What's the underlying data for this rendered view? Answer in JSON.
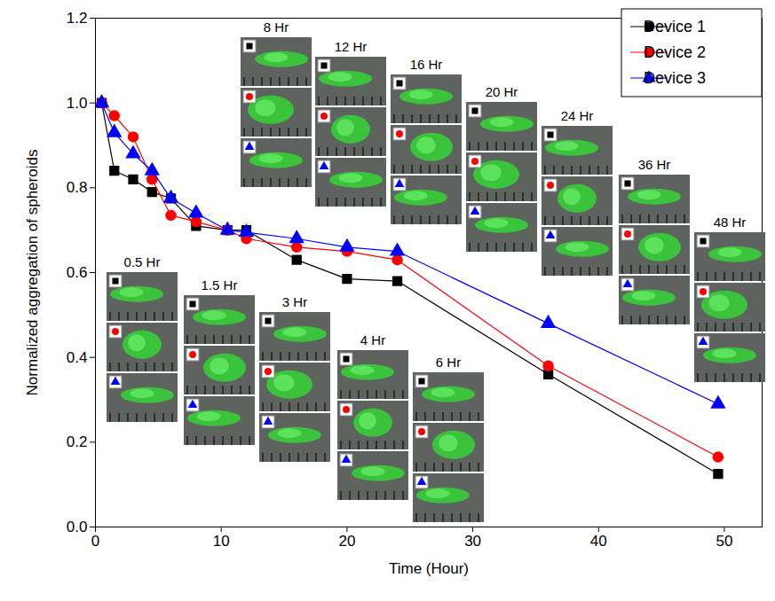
{
  "chart_data": {
    "type": "line",
    "x_label": "Time (Hour)",
    "y_label": "Normalized aggregation of spheroids",
    "xlim": [
      0,
      53
    ],
    "xticks": [
      0,
      10,
      20,
      30,
      40,
      50
    ],
    "ylim": [
      0,
      1.2
    ],
    "yticks": [
      {
        "value": 0,
        "label": "0.0"
      },
      0.2,
      0.4,
      0.6,
      0.8,
      {
        "value": 1,
        "label": "1.0"
      },
      1.2
    ],
    "legend": "top-right",
    "x": [
      0.5,
      1.5,
      3,
      4.5,
      6,
      8,
      10.5,
      12,
      16,
      20,
      24,
      36,
      49.5
    ],
    "series": [
      {
        "name": "Device 1",
        "color": "#000000",
        "marker": "square",
        "values": [
          1.0,
          0.84,
          0.82,
          0.79,
          0.775,
          0.71,
          0.7,
          0.7,
          0.63,
          0.585,
          0.58,
          0.36,
          0.125
        ]
      },
      {
        "name": "Device 2",
        "color": "#ff0000",
        "marker": "circle",
        "values": [
          1.0,
          0.97,
          0.92,
          0.82,
          0.735,
          0.72,
          0.7,
          0.68,
          0.66,
          0.65,
          0.63,
          0.38,
          0.165
        ]
      },
      {
        "name": "Device 3",
        "color": "#0000ff",
        "marker": "triangle",
        "values": [
          1.0,
          0.93,
          0.88,
          0.84,
          0.775,
          0.74,
          0.7,
          0.695,
          0.68,
          0.66,
          0.65,
          0.48,
          0.29
        ]
      }
    ],
    "annotations": [
      "0.5 Hr",
      "1.5 Hr",
      "3 Hr",
      "4 Hr",
      "6 Hr",
      "8 Hr",
      "12 Hr",
      "16 Hr",
      "20 Hr",
      "24 Hr",
      "36 Hr",
      "48 Hr"
    ]
  }
}
